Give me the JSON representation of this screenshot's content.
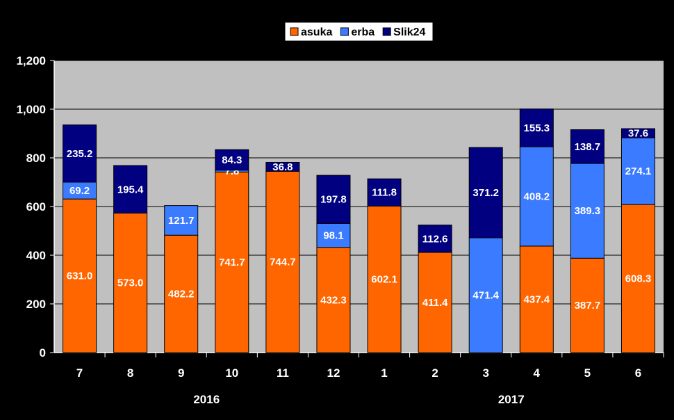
{
  "chart_data": {
    "type": "bar",
    "stacked": true,
    "categories": [
      "7",
      "8",
      "9",
      "10",
      "11",
      "12",
      "1",
      "2",
      "3",
      "4",
      "5",
      "6"
    ],
    "group_labels": [
      {
        "label": "2016",
        "from": 0,
        "to": 5
      },
      {
        "label": "2017",
        "from": 6,
        "to": 11
      }
    ],
    "series": [
      {
        "name": "asuka",
        "color": "#FF6600",
        "values": [
          631.0,
          573.0,
          482.2,
          741.7,
          744.7,
          432.3,
          602.1,
          411.4,
          null,
          437.4,
          387.7,
          608.3
        ],
        "labels": [
          "631.0",
          "573.0",
          "482.2",
          "741.7",
          "744.7",
          "432.3",
          "602.1",
          "411.4",
          "",
          "437.4",
          "387.7",
          "608.3"
        ]
      },
      {
        "name": "erba",
        "color": "#3A7BFF",
        "values": [
          69.2,
          null,
          121.7,
          7.8,
          null,
          98.1,
          null,
          null,
          471.4,
          408.2,
          389.3,
          274.1
        ],
        "labels": [
          "69.2",
          "",
          "121.7",
          "7.8",
          "",
          "98.1",
          "",
          "",
          "471.4",
          "408.2",
          "389.3",
          "274.1"
        ]
      },
      {
        "name": "Slik24",
        "color": "#000080",
        "values": [
          235.2,
          195.4,
          null,
          84.3,
          36.8,
          197.8,
          111.8,
          112.6,
          371.2,
          155.3,
          138.7,
          37.6
        ],
        "labels": [
          "235.2",
          "195.4",
          "",
          "84.3",
          "36.8",
          "197.8",
          "111.8",
          "112.6",
          "371.2",
          "155.3",
          "138.7",
          "37.6"
        ]
      }
    ],
    "ylim": [
      0,
      1200
    ],
    "yticks": [
      0,
      200,
      400,
      600,
      800,
      1000,
      1200
    ],
    "ytick_labels": [
      "0",
      "200",
      "400",
      "600",
      "800",
      "1,000",
      "1,200"
    ],
    "plot_background": "#C0C0C0",
    "grid": true,
    "legend_position": "top-center",
    "title": "",
    "xlabel": "",
    "ylabel": ""
  }
}
